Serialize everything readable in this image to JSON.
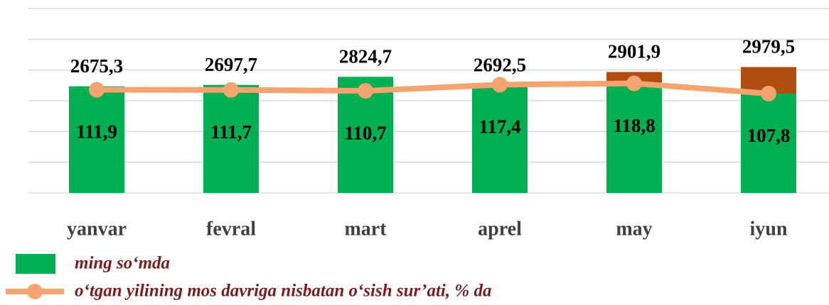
{
  "chart_data": {
    "type": "bar_line",
    "categories": [
      "yanvar",
      "fevral",
      "mart",
      "aprel",
      "may",
      "iyun"
    ],
    "series": [
      {
        "name": "ming so‘mda",
        "type": "bar",
        "color": "#00b050",
        "top_colors": [
          "#00b050",
          "#00b050",
          "#00b050",
          "#00b050",
          "#b24d12",
          "#b24d12"
        ],
        "values": [
          2675.3,
          2697.7,
          2824.7,
          2692.5,
          2901.9,
          2979.5
        ],
        "value_labels": [
          "2675,3",
          "2697,7",
          "2824,7",
          "2692,5",
          "2901,9",
          "2979,5"
        ]
      },
      {
        "name": "o‘tgan yilining mos davriga nisbatan o‘sish sur’ati, % da",
        "type": "line",
        "axis": "y2",
        "color": "#f4a471",
        "values": [
          111.9,
          111.7,
          110.7,
          117.4,
          118.8,
          107.8
        ],
        "value_labels": [
          "111,9",
          "111,7",
          "110,7",
          "117,4",
          "118,8",
          "107,8"
        ]
      }
    ],
    "ylim": [
      1000,
      3900
    ],
    "y2lim": [
      0,
      200
    ],
    "grid": true,
    "legend": "bottom-left"
  }
}
